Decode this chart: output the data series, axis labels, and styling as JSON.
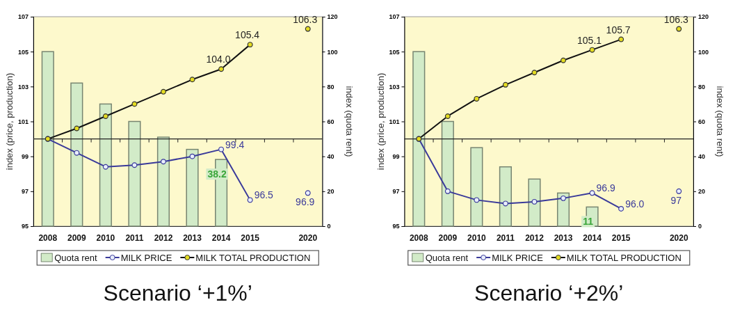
{
  "chart_data": [
    {
      "type": "bar",
      "title": "Scenario ‘+1%’",
      "ylabel": "index (price, production)",
      "y2label": "index (quota rent)",
      "categories": [
        "2008",
        "2009",
        "2010",
        "2011",
        "2012",
        "2013",
        "2014",
        "2015",
        null,
        "2020"
      ],
      "ylim": [
        95,
        107
      ],
      "yticks": [
        95,
        97,
        99,
        101,
        103,
        105,
        107
      ],
      "y2lim": [
        0,
        120
      ],
      "y2ticks": [
        0,
        20,
        40,
        60,
        80,
        100,
        120
      ],
      "legend": "bottom",
      "marker": "circle",
      "ref_lines": [
        {
          "axis": "y",
          "value": 100
        }
      ],
      "series": [
        {
          "name": "Quota rent",
          "type": "bar",
          "axis": "y2",
          "color": "#d2ebc8",
          "values": [
            100,
            82,
            70,
            60,
            51,
            44,
            38.2,
            null,
            null,
            null
          ],
          "value_labels": [
            null,
            null,
            null,
            null,
            null,
            null,
            "38.2",
            null,
            null,
            null
          ]
        },
        {
          "name": "MILK PRICE",
          "type": "line",
          "color": "#3a3a9a",
          "values": [
            100,
            99.2,
            98.4,
            98.5,
            98.7,
            99.0,
            99.4,
            96.5,
            null,
            96.9
          ],
          "value_labels": [
            null,
            null,
            null,
            null,
            null,
            null,
            "99.4",
            "96.5",
            null,
            "96.9"
          ]
        },
        {
          "name": "MILK TOTAL PRODUCTION",
          "type": "line",
          "color": "#e4dc22",
          "values": [
            100,
            100.6,
            101.3,
            102.0,
            102.7,
            103.4,
            104.0,
            105.4,
            null,
            106.3
          ],
          "value_labels": [
            null,
            null,
            null,
            null,
            null,
            null,
            "104.0",
            "105.4",
            null,
            "106.3"
          ]
        }
      ]
    },
    {
      "type": "bar",
      "title": "Scenario ‘+2%’",
      "ylabel": "index (price, production)",
      "y2label": "index (quota rent)",
      "categories": [
        "2008",
        "2009",
        "2010",
        "2011",
        "2012",
        "2013",
        "2014",
        "2015",
        null,
        "2020"
      ],
      "ylim": [
        95,
        107
      ],
      "yticks": [
        95,
        97,
        99,
        101,
        103,
        105,
        107
      ],
      "y2lim": [
        0,
        120
      ],
      "y2ticks": [
        0,
        20,
        40,
        60,
        80,
        100,
        120
      ],
      "legend": "bottom",
      "marker": "circle",
      "ref_lines": [
        {
          "axis": "y",
          "value": 100
        }
      ],
      "series": [
        {
          "name": "Quota rent",
          "type": "bar",
          "axis": "y2",
          "color": "#d2ebc8",
          "values": [
            100,
            60,
            45,
            34,
            27,
            19,
            11,
            null,
            null,
            null
          ],
          "value_labels": [
            null,
            null,
            null,
            null,
            null,
            null,
            "11",
            null,
            null,
            null
          ]
        },
        {
          "name": "MILK PRICE",
          "type": "line",
          "color": "#3a3a9a",
          "values": [
            100,
            97.0,
            96.5,
            96.3,
            96.4,
            96.6,
            96.9,
            96.0,
            null,
            97
          ],
          "value_labels": [
            null,
            null,
            null,
            null,
            null,
            null,
            "96.9",
            "96.0",
            null,
            "97"
          ]
        },
        {
          "name": "MILK TOTAL PRODUCTION",
          "type": "line",
          "color": "#e4dc22",
          "values": [
            100,
            101.3,
            102.3,
            103.1,
            103.8,
            104.5,
            105.1,
            105.7,
            null,
            106.3
          ],
          "value_labels": [
            null,
            null,
            null,
            null,
            null,
            null,
            "105.1",
            "105.7",
            null,
            "106.3"
          ]
        }
      ]
    }
  ]
}
